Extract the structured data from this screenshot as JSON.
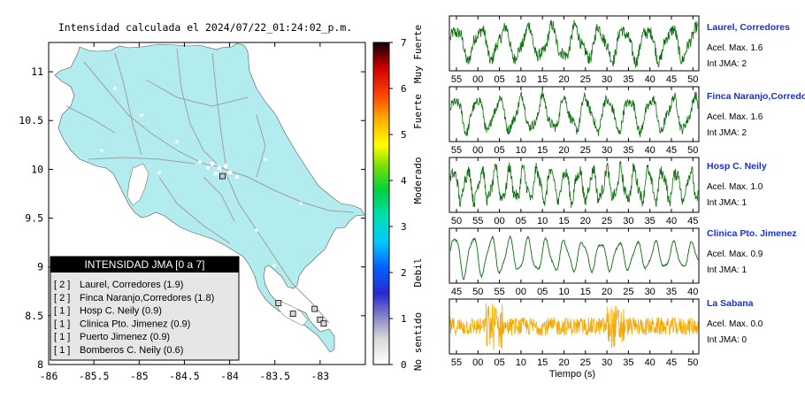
{
  "map": {
    "title": "Intensidad calculada el 2024/07/22_01:24:02_p.m.",
    "x_ticks": [
      "-86",
      "-85.5",
      "-85",
      "-84.5",
      "-84",
      "-83.5",
      "-83"
    ],
    "y_ticks": [
      "11",
      "10.5",
      "10",
      "9.5",
      "9",
      "8.5",
      "8"
    ],
    "xlim": [
      -86,
      -82.5
    ],
    "ylim": [
      8,
      11.3
    ],
    "land_color": "#b2ecee",
    "stations": [
      {
        "lon": -84.08,
        "lat": 9.93,
        "intensity": 2
      },
      {
        "lon": -83.0,
        "lat": 8.46,
        "intensity": 1
      },
      {
        "lon": -83.46,
        "lat": 8.63,
        "intensity": 1
      },
      {
        "lon": -83.3,
        "lat": 8.52,
        "intensity": 1
      },
      {
        "lon": -83.06,
        "lat": 8.57,
        "intensity": 1
      },
      {
        "lon": -82.96,
        "lat": 8.42,
        "intensity": 1
      }
    ]
  },
  "legend": {
    "title": "INTENSIDAD JMA [0 a 7]",
    "entries": [
      {
        "code": "[ 2 ]",
        "text": "Laurel, Corredores (1.9)"
      },
      {
        "code": "[ 2 ]",
        "text": "Finca Naranjo,Corredores (1.8)"
      },
      {
        "code": "[ 1 ]",
        "text": "Hosp C. Neily (0.9)"
      },
      {
        "code": "[ 1 ]",
        "text": "Clinica Pto. Jimenez (0.9)"
      },
      {
        "code": "[ 1 ]",
        "text": "Puerto Jimenez (0.9)"
      },
      {
        "code": "[ 1 ]",
        "text": "Bomberos C. Neily (0.6)"
      }
    ]
  },
  "colorbar": {
    "ticks": [
      "0",
      "1",
      "2",
      "3",
      "4",
      "5",
      "6",
      "7"
    ],
    "labels": [
      "No sentido",
      "Debil",
      "Moderado",
      "Fuerte",
      "Muy Fuerte"
    ],
    "range": [
      0,
      7
    ]
  },
  "chart_data": [
    {
      "type": "line",
      "station": "Laurel, Corredores",
      "acel_label": "Acel. Max. 1.6",
      "int_label": "Int JMA: 2",
      "color": "#0a6e0a",
      "x_ticks": [
        "55",
        "00",
        "05",
        "10",
        "15",
        "20",
        "25",
        "30",
        "35",
        "40",
        "45",
        "50"
      ],
      "amplitude": 1.6,
      "dominant_period_s": 5.5,
      "noise": 0.3
    },
    {
      "type": "line",
      "station": "Finca Naranjo,Corredores",
      "acel_label": "Acel. Max. 1.6",
      "int_label": "Int JMA: 2",
      "color": "#0a6e0a",
      "x_ticks": [
        "55",
        "00",
        "05",
        "10",
        "15",
        "20",
        "25",
        "30",
        "35",
        "40",
        "45",
        "50"
      ],
      "amplitude": 1.6,
      "dominant_period_s": 5.0,
      "noise": 0.25
    },
    {
      "type": "line",
      "station": "Hosp C. Neily",
      "acel_label": "Acel. Max. 1.0",
      "int_label": "Int JMA: 1",
      "color": "#0a6e0a",
      "x_ticks": [
        "50",
        "55",
        "00",
        "05",
        "10",
        "15",
        "20",
        "25",
        "30",
        "35",
        "40",
        "45"
      ],
      "amplitude": 1.0,
      "dominant_period_s": 3.2,
      "noise": 0.3
    },
    {
      "type": "line",
      "station": "Clinica Pto. Jimenez",
      "acel_label": "Acel. Max. 0.9",
      "int_label": "Int JMA: 1",
      "color": "#0a6e0a",
      "x_ticks": [
        "45",
        "50",
        "55",
        "00",
        "05",
        "10",
        "15",
        "20",
        "25",
        "30",
        "35",
        "40"
      ],
      "amplitude": 0.9,
      "dominant_period_s": 4.2,
      "noise": 0.06
    },
    {
      "type": "line",
      "station": "La Sabana",
      "acel_label": "Acel. Max. 0.0",
      "int_label": "Int JMA: 0",
      "color": "#f5a800",
      "x_ticks": [
        "55",
        "00",
        "05",
        "10",
        "15",
        "20",
        "25",
        "30",
        "35",
        "40",
        "45",
        "50"
      ],
      "amplitude": 0.02,
      "dominant_period_s": 0.4,
      "noise": 1.0
    }
  ],
  "waveform_xlabel": "Tiempo (s)"
}
